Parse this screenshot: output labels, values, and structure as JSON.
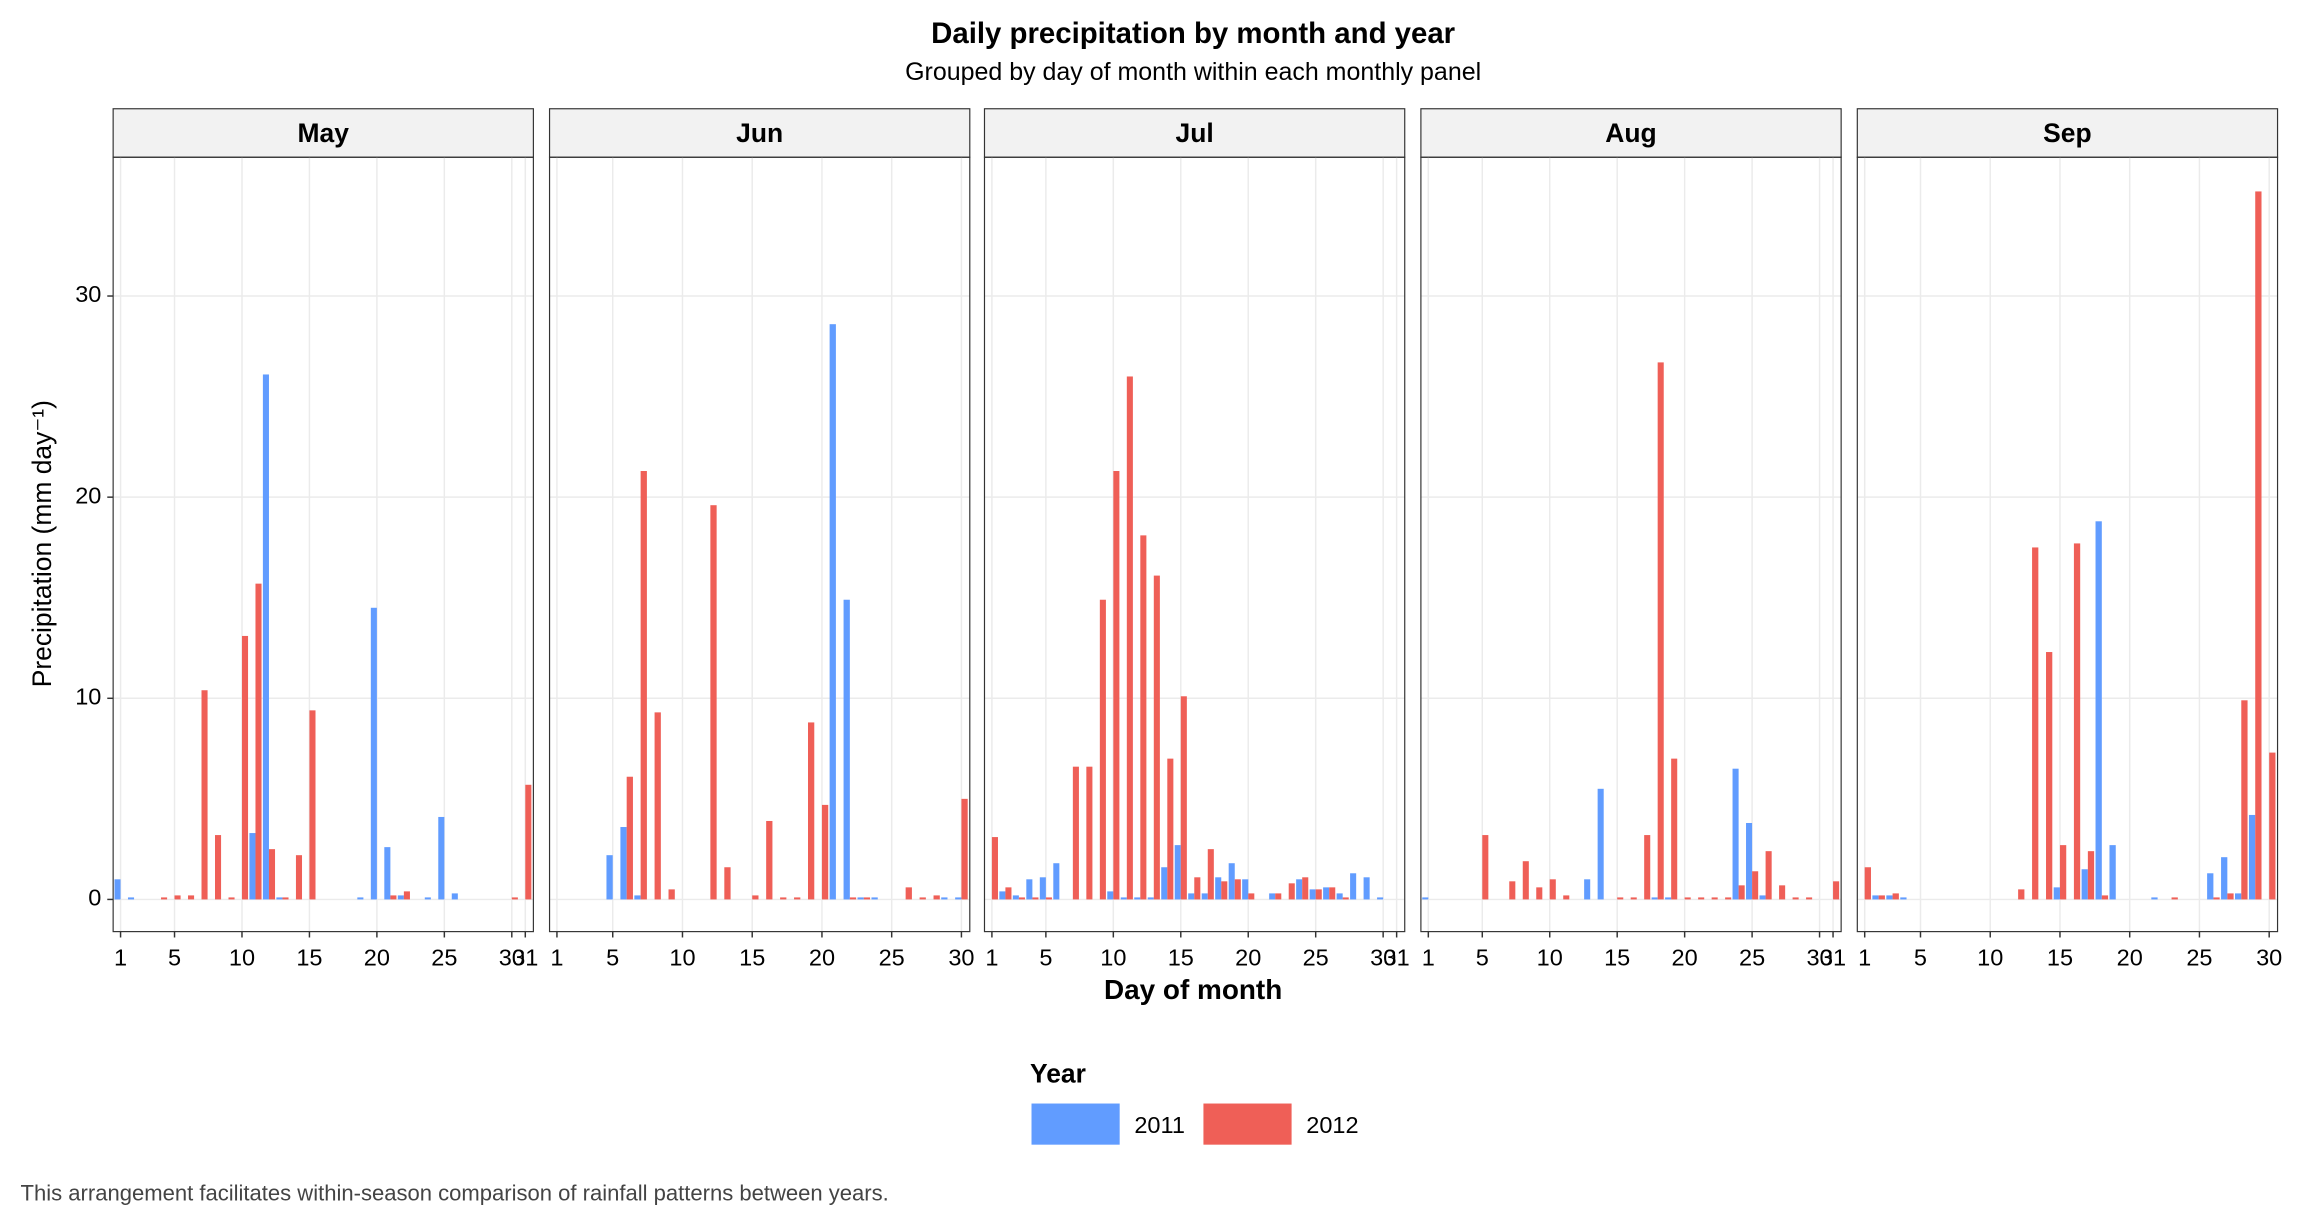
{
  "chart_data": {
    "type": "bar",
    "title": "Daily precipitation by month and year",
    "subtitle": "Grouped by day of month within each monthly panel",
    "x_label": "Day of month",
    "y_label": "Precipitation (mm day⁻¹)",
    "legend_title": "Year",
    "caption": "This arrangement facilitates within-season comparison of rainfall patterns between years.",
    "ylim": [
      -1.6,
      36.9
    ],
    "yticks": [
      0,
      10,
      20,
      30
    ],
    "grid": true,
    "legend_position": "bottom",
    "series_names": [
      "2011",
      "2012"
    ],
    "colors": [
      "#619CFF",
      "#EF5F57"
    ],
    "panels": [
      {
        "title": "May",
        "xlim": [
          0.45,
          31.6
        ],
        "xticks": [
          1,
          5,
          10,
          15,
          20,
          25,
          30,
          31
        ],
        "x": [
          1,
          2,
          3,
          4,
          5,
          6,
          7,
          8,
          9,
          10,
          11,
          12,
          13,
          14,
          15,
          16,
          17,
          18,
          19,
          20,
          21,
          22,
          23,
          24,
          25,
          26,
          27,
          28,
          29,
          30,
          31
        ],
        "series": [
          {
            "values": [
              1.0,
              0.1,
              0,
              0,
              0,
              0,
              0,
              0,
              0,
              0,
              3.3,
              26.1,
              0.1,
              0,
              0,
              0,
              0,
              0,
              0.1,
              14.5,
              2.6,
              0.2,
              0,
              0.1,
              4.1,
              0.3,
              0,
              0,
              0,
              0,
              0
            ]
          },
          {
            "values": [
              0,
              0,
              0,
              0.1,
              0.2,
              0.2,
              10.4,
              3.2,
              0.1,
              13.1,
              15.7,
              2.5,
              0.1,
              2.2,
              9.4,
              0,
              0,
              0,
              0,
              0,
              0.2,
              0.4,
              0,
              0,
              0,
              0,
              0,
              0,
              0,
              0.1,
              5.7
            ]
          }
        ]
      },
      {
        "title": "Jun",
        "xlim": [
          0.47,
          30.6
        ],
        "xticks": [
          1,
          5,
          10,
          15,
          20,
          25,
          30
        ],
        "x": [
          1,
          2,
          3,
          4,
          5,
          6,
          7,
          8,
          9,
          10,
          11,
          12,
          13,
          14,
          15,
          16,
          17,
          18,
          19,
          20,
          21,
          22,
          23,
          24,
          25,
          26,
          27,
          28,
          29,
          30
        ],
        "series": [
          {
            "values": [
              0,
              0,
              0,
              0,
              2.2,
              3.6,
              0.2,
              0,
              0,
              0,
              0,
              0,
              0,
              0,
              0,
              0,
              0,
              0,
              0,
              0,
              28.6,
              14.9,
              0.1,
              0.1,
              0,
              0,
              0,
              0,
              0.1,
              0.1
            ]
          },
          {
            "values": [
              0,
              0,
              0,
              0,
              0,
              6.1,
              21.3,
              9.3,
              0.5,
              0,
              0,
              19.6,
              1.6,
              0,
              0.2,
              3.9,
              0.1,
              0.1,
              8.8,
              4.7,
              0,
              0.1,
              0.1,
              0,
              0,
              0.6,
              0.1,
              0.2,
              0,
              5.0
            ]
          }
        ]
      },
      {
        "title": "Jul",
        "xlim": [
          0.45,
          31.6
        ],
        "xticks": [
          1,
          5,
          10,
          15,
          20,
          25,
          30,
          31
        ],
        "x": [
          1,
          2,
          3,
          4,
          5,
          6,
          7,
          8,
          9,
          10,
          11,
          12,
          13,
          14,
          15,
          16,
          17,
          18,
          19,
          20,
          21,
          22,
          23,
          24,
          25,
          26,
          27,
          28,
          29,
          30,
          31
        ],
        "series": [
          {
            "values": [
              0,
              0.4,
              0.2,
              1.0,
              1.1,
              1.8,
              0,
              0,
              0,
              0.4,
              0.1,
              0.1,
              0.1,
              1.6,
              2.7,
              0.3,
              0.3,
              1.1,
              1.8,
              1.0,
              0,
              0.3,
              0,
              1.0,
              0.5,
              0.6,
              0.3,
              1.3,
              1.1,
              0.1,
              0
            ]
          },
          {
            "values": [
              3.1,
              0.6,
              0.1,
              0.1,
              0.1,
              0,
              6.6,
              6.6,
              14.9,
              21.3,
              26.0,
              18.1,
              16.1,
              7.0,
              10.1,
              1.1,
              2.5,
              0.9,
              1.0,
              0.3,
              0,
              0.3,
              0.8,
              1.1,
              0.5,
              0.6,
              0.1,
              0,
              0,
              0,
              0
            ]
          }
        ]
      },
      {
        "title": "Aug",
        "xlim": [
          0.45,
          31.6
        ],
        "xticks": [
          1,
          5,
          10,
          15,
          20,
          25,
          30,
          31
        ],
        "x": [
          1,
          2,
          3,
          4,
          5,
          6,
          7,
          8,
          9,
          10,
          11,
          12,
          13,
          14,
          15,
          16,
          17,
          18,
          19,
          20,
          21,
          22,
          23,
          24,
          25,
          26,
          27,
          28,
          29,
          30,
          31
        ],
        "series": [
          {
            "values": [
              0.1,
              0,
              0,
              0,
              0,
              0,
              0,
              0,
              0,
              0,
              0,
              0,
              1.0,
              5.5,
              0,
              0,
              0,
              0.1,
              0.1,
              0,
              0,
              0,
              0,
              6.5,
              3.8,
              0.2,
              0,
              0,
              0,
              0,
              0
            ]
          },
          {
            "values": [
              0,
              0,
              0,
              0,
              3.2,
              0,
              0.9,
              1.9,
              0.6,
              1.0,
              0.2,
              0,
              0,
              0,
              0.1,
              0.1,
              3.2,
              26.7,
              7.0,
              0.1,
              0.1,
              0.1,
              0.1,
              0.7,
              1.4,
              2.4,
              0.7,
              0.1,
              0.1,
              0,
              0.9
            ]
          }
        ]
      },
      {
        "title": "Sep",
        "xlim": [
          0.47,
          30.6
        ],
        "xticks": [
          1,
          5,
          10,
          15,
          20,
          25,
          30
        ],
        "x": [
          1,
          2,
          3,
          4,
          5,
          6,
          7,
          8,
          9,
          10,
          11,
          12,
          13,
          14,
          15,
          16,
          17,
          18,
          19,
          20,
          21,
          22,
          23,
          24,
          25,
          26,
          27,
          28,
          29,
          30
        ],
        "series": [
          {
            "values": [
              0,
              0.2,
              0.2,
              0.1,
              0,
              0,
              0,
              0,
              0,
              0,
              0,
              0,
              0,
              0,
              0.6,
              0,
              1.5,
              18.8,
              2.7,
              0,
              0,
              0.1,
              0,
              0,
              0,
              1.3,
              2.1,
              0.3,
              4.2,
              0
            ]
          },
          {
            "values": [
              1.6,
              0.2,
              0.3,
              0,
              0,
              0,
              0,
              0,
              0,
              0,
              0,
              0.5,
              17.5,
              12.3,
              2.7,
              17.7,
              2.4,
              0.2,
              0,
              0,
              0,
              0,
              0.1,
              0,
              0,
              0.1,
              0.3,
              9.9,
              35.2,
              7.3
            ]
          }
        ]
      }
    ]
  }
}
